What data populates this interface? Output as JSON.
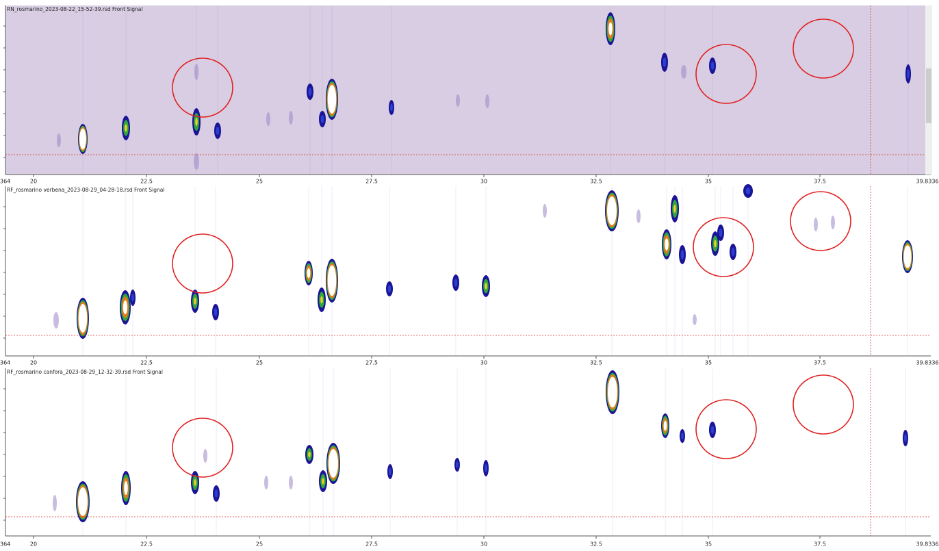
{
  "panels": [
    {
      "title": "RN_rosmarino_2023-08-22_15-52-39.rsd Front Signal",
      "x_labels": [
        "364",
        "20",
        "22.5",
        "25",
        "27.5",
        "30",
        "32.5",
        "35",
        "37.5",
        "39.8336"
      ]
    },
    {
      "title": "RF_rosmarino verbena_2023-08-29_04-28-18.rsd Front Signal",
      "x_labels": [
        "364",
        "20",
        "22.5",
        "25",
        "27.5",
        "30",
        "32.5",
        "35",
        "37.5",
        "39.8336"
      ]
    },
    {
      "title": "RF_rosmarino canfora_2023-08-29_12-32-39.rsd Front Signal",
      "x_labels": [
        "364",
        "20",
        "22.5",
        "25",
        "27.5",
        "30",
        "32.5",
        "35",
        "37.5",
        "39.8336"
      ]
    }
  ]
}
